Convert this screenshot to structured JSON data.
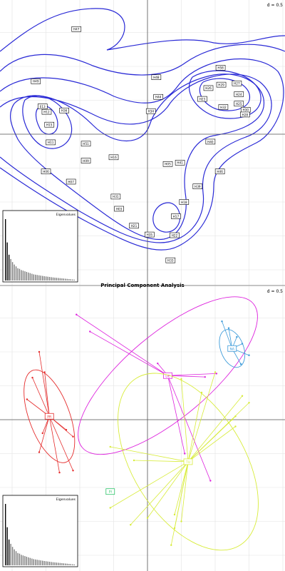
{
  "chart_data": [
    {
      "type": "scatter",
      "subtype": "contour-plot",
      "d_label": "d = 0.5",
      "grid": true,
      "contour_color": "#2a2ad6",
      "labels": [
        {
          "text": "H47",
          "x": -1.05,
          "y": 1.55
        },
        {
          "text": "H49",
          "x": -1.65,
          "y": 0.78
        },
        {
          "text": "H48",
          "x": 0.13,
          "y": 0.84
        },
        {
          "text": "H44",
          "x": 0.16,
          "y": 0.55
        },
        {
          "text": "H34",
          "x": 0.05,
          "y": 0.34
        },
        {
          "text": "H58",
          "x": 1.08,
          "y": 0.98
        },
        {
          "text": "H26",
          "x": 0.9,
          "y": 0.68
        },
        {
          "text": "H29",
          "x": 1.09,
          "y": 0.73
        },
        {
          "text": "H27",
          "x": 1.32,
          "y": 0.75
        },
        {
          "text": "H24",
          "x": 1.35,
          "y": 0.59
        },
        {
          "text": "H23",
          "x": 0.81,
          "y": 0.52
        },
        {
          "text": "H32",
          "x": 1.12,
          "y": 0.4
        },
        {
          "text": "H25",
          "x": 1.35,
          "y": 0.45
        },
        {
          "text": "H30",
          "x": 1.45,
          "y": 0.36
        },
        {
          "text": "H28",
          "x": 1.44,
          "y": 0.29
        },
        {
          "text": "E13",
          "x": -1.55,
          "y": 0.41
        },
        {
          "text": "H12",
          "x": -1.49,
          "y": 0.33
        },
        {
          "text": "H36",
          "x": -1.23,
          "y": 0.35
        },
        {
          "text": "H15",
          "x": -1.45,
          "y": 0.14
        },
        {
          "text": "H11",
          "x": -1.43,
          "y": -0.12
        },
        {
          "text": "H51",
          "x": -0.91,
          "y": -0.14
        },
        {
          "text": "H09",
          "x": -0.91,
          "y": -0.39
        },
        {
          "text": "H16",
          "x": -0.5,
          "y": -0.34
        },
        {
          "text": "H40",
          "x": 0.93,
          "y": -0.11
        },
        {
          "text": "H05",
          "x": 0.3,
          "y": -0.44
        },
        {
          "text": "H41",
          "x": 0.48,
          "y": -0.42
        },
        {
          "text": "H46",
          "x": 1.07,
          "y": -0.55
        },
        {
          "text": "H06",
          "x": -1.5,
          "y": -0.55
        },
        {
          "text": "H07",
          "x": -1.13,
          "y": -0.7
        },
        {
          "text": "H39",
          "x": 0.74,
          "y": -0.77
        },
        {
          "text": "H31",
          "x": -0.47,
          "y": -0.92
        },
        {
          "text": "H18",
          "x": 0.54,
          "y": -1.0
        },
        {
          "text": "H03",
          "x": -0.42,
          "y": -1.1
        },
        {
          "text": "H17",
          "x": 0.42,
          "y": -1.21
        },
        {
          "text": "H21",
          "x": -0.2,
          "y": -1.35
        },
        {
          "text": "H35",
          "x": 0.03,
          "y": -1.48
        },
        {
          "text": "H22",
          "x": 0.4,
          "y": -1.49
        },
        {
          "text": "H33",
          "x": 0.34,
          "y": -1.86
        }
      ]
    },
    {
      "type": "scatter",
      "subtype": "class-ellipses",
      "title": "Principal Component Analysis",
      "d_label": "d = 0.5",
      "grid": true,
      "groups": [
        {
          "name": "DE",
          "color": "#dd22dd",
          "center": [
            0.3,
            0.65
          ],
          "ellipse": {
            "rx": 1.65,
            "ry": 0.62,
            "angle_deg": -40
          },
          "points": [
            [
              -1.05,
              1.55
            ],
            [
              -0.85,
              1.3
            ],
            [
              0.15,
              0.83
            ],
            [
              1.02,
              0.68
            ],
            [
              0.85,
              0.63
            ],
            [
              0.93,
              -0.9
            ],
            [
              0.55,
              -0.5
            ]
          ]
        },
        {
          "name": "NA",
          "color": "#3a9ad9",
          "center": [
            1.25,
            1.05
          ],
          "ellipse": {
            "rx": 0.29,
            "ry": 0.17,
            "angle_deg": 70
          },
          "points": [
            [
              1.1,
              1.45
            ],
            [
              1.2,
              1.35
            ],
            [
              1.4,
              1.12
            ],
            [
              1.5,
              0.95
            ],
            [
              1.38,
              0.82
            ],
            [
              1.32,
              1.22
            ]
          ]
        },
        {
          "name": "PR",
          "color": "#e52b2b",
          "center": [
            -1.45,
            0.05
          ],
          "ellipse": {
            "rx": 0.72,
            "ry": 0.3,
            "angle_deg": 70
          },
          "points": [
            [
              -1.6,
              1.0
            ],
            [
              -1.7,
              0.62
            ],
            [
              -1.78,
              0.3
            ],
            [
              -1.55,
              -0.2
            ],
            [
              -1.6,
              -0.48
            ],
            [
              -1.1,
              -0.25
            ],
            [
              -1.1,
              -0.75
            ],
            [
              -1.3,
              -0.78
            ],
            [
              -1.52,
              0.7
            ],
            [
              -1.2,
              -0.15
            ]
          ]
        },
        {
          "name": "TU",
          "color": "#d8ec3a",
          "center": [
            0.6,
            -0.62
          ],
          "ellipse": {
            "rx": 1.45,
            "ry": 0.82,
            "angle_deg": 58
          },
          "points": [
            [
              1.0,
              0.7
            ],
            [
              1.25,
              0.0
            ],
            [
              1.3,
              -0.1
            ],
            [
              1.4,
              0.35
            ],
            [
              1.5,
              0.25
            ],
            [
              0.5,
              0.6
            ],
            [
              0.8,
              0.4
            ],
            [
              -0.55,
              -0.4
            ],
            [
              -0.2,
              -0.6
            ],
            [
              0.4,
              -1.4
            ],
            [
              0.5,
              -1.5
            ],
            [
              0.4,
              -1.6
            ],
            [
              -0.25,
              -1.55
            ],
            [
              0.0,
              -1.45
            ],
            [
              0.35,
              -1.85
            ],
            [
              -0.55,
              -1.3
            ],
            [
              1.3,
              0.05
            ]
          ]
        },
        {
          "name": "PI",
          "color": "#2bc468",
          "center": [
            -0.55,
            -1.06
          ],
          "ellipse": null,
          "points": [
            [
              -0.55,
              -1.06
            ]
          ]
        }
      ]
    }
  ],
  "insets": {
    "label": "Eigenvalues",
    "values": [
      1.0,
      0.62,
      0.42,
      0.35,
      0.3,
      0.26,
      0.23,
      0.2,
      0.19,
      0.17,
      0.16,
      0.15,
      0.14,
      0.13,
      0.12,
      0.11,
      0.1,
      0.095,
      0.09,
      0.085,
      0.08,
      0.075,
      0.07,
      0.066,
      0.062,
      0.058,
      0.054,
      0.05,
      0.047,
      0.044,
      0.041,
      0.038,
      0.035,
      0.032,
      0.029,
      0.026,
      0.023,
      0.02,
      0.017,
      0.014
    ],
    "highlighted_count": 3
  }
}
